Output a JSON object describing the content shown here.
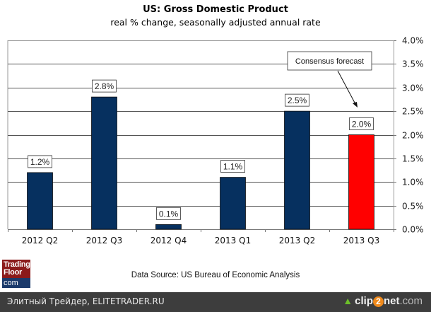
{
  "chart_data": {
    "type": "bar",
    "title": "US:  Gross Domestic Product",
    "subtitle": "real % change, seasonally adjusted annual rate",
    "categories": [
      "2012 Q2",
      "2012 Q3",
      "2012 Q4",
      "2013 Q1",
      "2013 Q2",
      "2013 Q3"
    ],
    "values": [
      1.2,
      2.8,
      0.1,
      1.1,
      2.5,
      2.0
    ],
    "data_labels": [
      "1.2%",
      "2.8%",
      "0.1%",
      "1.1%",
      "2.5%",
      "2.0%"
    ],
    "bar_colors": [
      "#06305f",
      "#06305f",
      "#06305f",
      "#06305f",
      "#06305f",
      "#ff0000"
    ],
    "forecast_index": 5,
    "annotation": "Consensus forecast",
    "xlabel": "",
    "ylabel": "",
    "ylim": [
      0,
      4.0
    ],
    "yticks": [
      0,
      0.5,
      1.0,
      1.5,
      2.0,
      2.5,
      3.0,
      3.5,
      4.0
    ],
    "ytick_labels": [
      "0.0%",
      "0.5%",
      "1.0%",
      "1.5%",
      "2.0%",
      "2.5%",
      "3.0%",
      "3.5%",
      "4.0%"
    ],
    "y_axis_position": "right",
    "grid": true,
    "legend": "none"
  },
  "source": "Data Source: US Bureau of Economic Analysis",
  "logo": {
    "line1": "Trading",
    "line2": "Floor",
    "line3": "com"
  },
  "footer": {
    "left_text": "Элитный Трейдер, ELITETRADER.RU",
    "brand_pre": "clip",
    "brand_num": "2",
    "brand_post": "net",
    "brand_domain": ".com"
  },
  "colors": {
    "bar": "#06305f",
    "forecast": "#ff0000",
    "footer_bg": "#3d3d3d"
  }
}
